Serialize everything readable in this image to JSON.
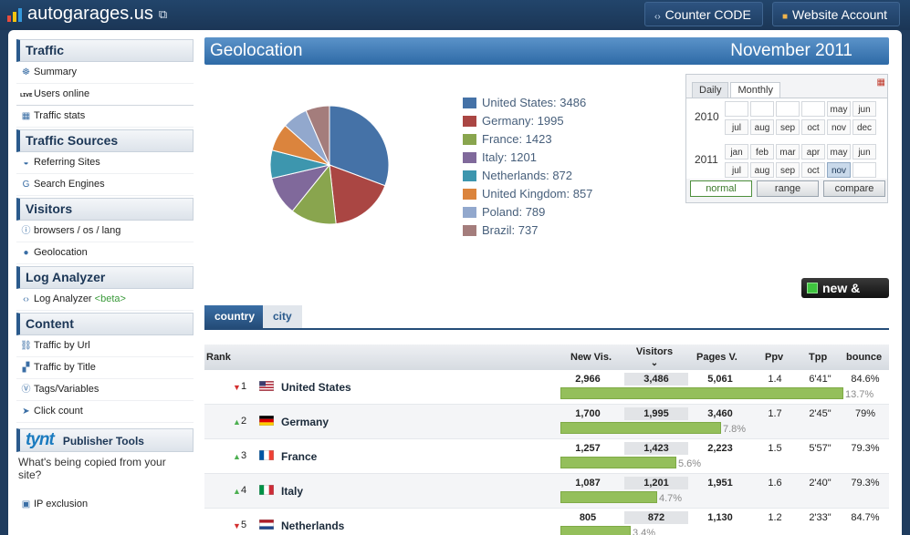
{
  "site": {
    "name": "autogarages.us"
  },
  "top_buttons": {
    "counter": "Counter CODE",
    "account": "Website Account"
  },
  "sidebar": {
    "sections": [
      {
        "title": "Traffic",
        "items": [
          {
            "label": "Summary",
            "icon": "summary-icon",
            "glyph": "☸"
          },
          {
            "label": "Users online",
            "icon": "live-icon",
            "glyph": "ʟɪᴠᴇ"
          },
          {
            "label": "Traffic stats",
            "icon": "calendar-icon",
            "glyph": "▦"
          }
        ]
      },
      {
        "title": "Traffic Sources",
        "items": [
          {
            "label": "Referring Sites",
            "icon": "referring-icon",
            "glyph": "◒"
          },
          {
            "label": "Search Engines",
            "icon": "google-icon",
            "glyph": "G"
          }
        ]
      },
      {
        "title": "Visitors",
        "items": [
          {
            "label": "browsers / os / lang",
            "icon": "info-icon",
            "glyph": "ⓘ"
          },
          {
            "label": "Geolocation",
            "icon": "globe-icon",
            "glyph": "●"
          }
        ]
      },
      {
        "title": "Log Analyzer",
        "items": [
          {
            "label": "Log Analyzer",
            "beta": "<beta>",
            "icon": "code-icon",
            "glyph": "‹›"
          }
        ]
      },
      {
        "title": "Content",
        "items": [
          {
            "label": "Traffic by Url",
            "icon": "link-icon",
            "glyph": "⛓"
          },
          {
            "label": "Traffic by Title",
            "icon": "title-icon",
            "glyph": "▞"
          },
          {
            "label": "Tags/Variables",
            "icon": "tag-icon",
            "glyph": "Ⓥ"
          },
          {
            "label": "Click count",
            "icon": "cursor-icon",
            "glyph": "➤"
          }
        ]
      }
    ],
    "tynt": {
      "logo": "tynt",
      "title": "Publisher Tools",
      "desc": "What's being copied from your site?"
    },
    "ip_exclusion": {
      "label": "IP exclusion",
      "glyph": "▣"
    }
  },
  "header": {
    "title": "Geolocation",
    "month": "November 2011"
  },
  "chart_data": {
    "type": "pie",
    "categories": [
      "United States",
      "Germany",
      "France",
      "Italy",
      "Netherlands",
      "United Kingdom",
      "Poland",
      "Brazil"
    ],
    "values": [
      3486,
      1995,
      1423,
      1201,
      872,
      857,
      789,
      737
    ],
    "colors": [
      "#4572a7",
      "#aa4643",
      "#89a54e",
      "#80699b",
      "#3d96ae",
      "#db843d",
      "#92a8cd",
      "#a47d7c"
    ],
    "legend": "right"
  },
  "calendar": {
    "tabs": [
      "Daily",
      "Monthly"
    ],
    "active_tab": "Monthly",
    "years": [
      {
        "year": "2010",
        "months": [
          "",
          "",
          "",
          "",
          "may",
          "jun",
          "jul",
          "aug",
          "sep",
          "oct",
          "nov",
          "dec"
        ]
      },
      {
        "year": "2011",
        "months": [
          "jan",
          "feb",
          "mar",
          "apr",
          "may",
          "jun",
          "jul",
          "aug",
          "sep",
          "oct",
          "nov",
          ""
        ]
      }
    ],
    "selected": "nov",
    "modes": [
      "normal",
      "range",
      "compare"
    ],
    "active_mode": "normal"
  },
  "new_lost": "new & lost",
  "tabs": {
    "country": "country",
    "city": "city"
  },
  "table": {
    "headers": {
      "rank": "Rank",
      "new": "New Vis.",
      "visitors": "Visitors",
      "pages": "Pages V.",
      "ppv": "Ppv",
      "tpp": "Tpp",
      "bounce": "bounce"
    },
    "rows": [
      {
        "rank": "1",
        "trend": "down",
        "country": "United States",
        "new_vis": "2,966",
        "visitors": "3,486",
        "pages": "5,061",
        "ppv": "1.4",
        "tpp": "6'41\"",
        "bounce": "84.6%",
        "share": "13.7%",
        "share_value": 13.7,
        "flag": "us"
      },
      {
        "rank": "2",
        "trend": "up",
        "country": "Germany",
        "new_vis": "1,700",
        "visitors": "1,995",
        "pages": "3,460",
        "ppv": "1.7",
        "tpp": "2'45\"",
        "bounce": "79%",
        "share": "7.8%",
        "share_value": 7.8,
        "flag": "de"
      },
      {
        "rank": "3",
        "trend": "up",
        "country": "France",
        "new_vis": "1,257",
        "visitors": "1,423",
        "pages": "2,223",
        "ppv": "1.5",
        "tpp": "5'57\"",
        "bounce": "79.3%",
        "share": "5.6%",
        "share_value": 5.6,
        "flag": "fr"
      },
      {
        "rank": "4",
        "trend": "up",
        "country": "Italy",
        "new_vis": "1,087",
        "visitors": "1,201",
        "pages": "1,951",
        "ppv": "1.6",
        "tpp": "2'40\"",
        "bounce": "79.3%",
        "share": "4.7%",
        "share_value": 4.7,
        "flag": "it"
      },
      {
        "rank": "5",
        "trend": "down",
        "country": "Netherlands",
        "new_vis": "805",
        "visitors": "872",
        "pages": "1,130",
        "ppv": "1.2",
        "tpp": "2'33\"",
        "bounce": "84.7%",
        "share": "3.4%",
        "share_value": 3.4,
        "flag": "nl"
      }
    ]
  }
}
